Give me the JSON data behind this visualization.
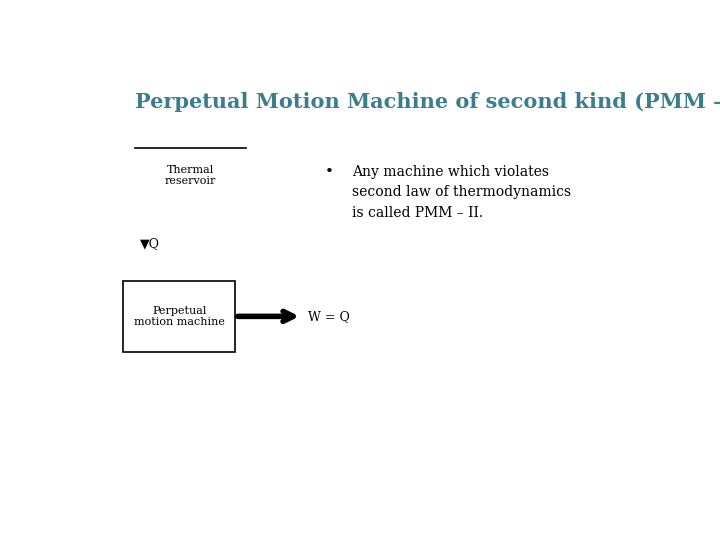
{
  "title": "Perpetual Motion Machine of second kind (PMM – II)",
  "title_color": "#3a7d8c",
  "title_fontsize": 15,
  "bullet_text": "Any machine which violates\nsecond law of thermodynamics\nis called PMM – II.",
  "bullet_fontsize": 10,
  "label_thermal": "Thermal\nreservoir",
  "label_pmm": "Perpetual\nmotion machine",
  "label_Q": "▼Q",
  "label_W": "W = Q",
  "bg_color": "#ffffff",
  "diagram_color": "#000000"
}
